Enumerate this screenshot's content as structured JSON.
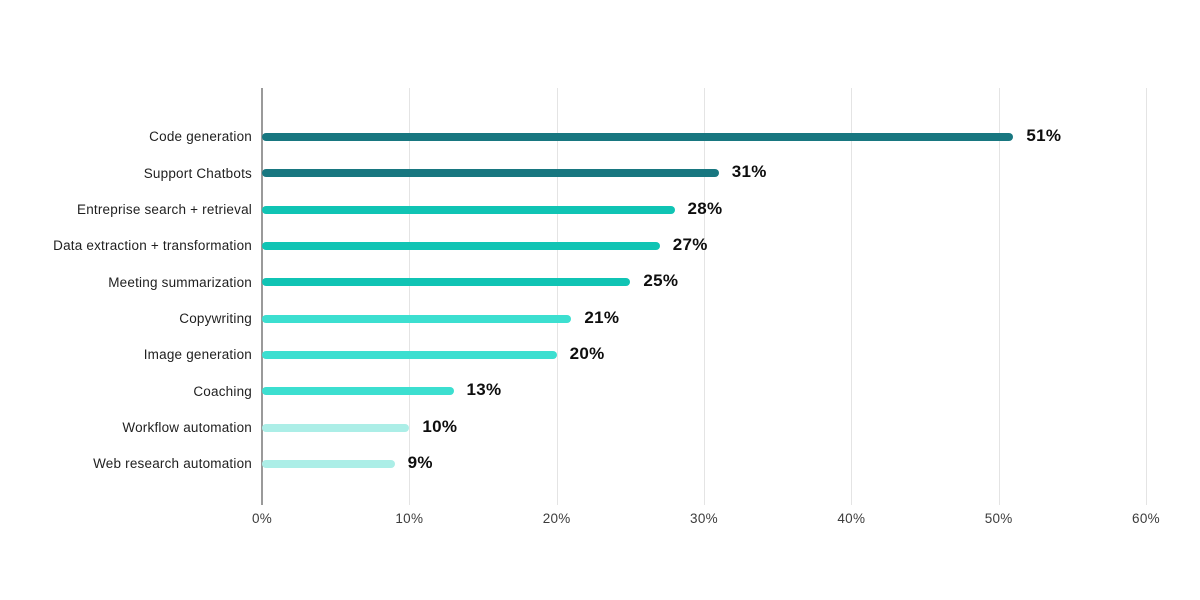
{
  "chart_data": {
    "type": "bar",
    "orientation": "horizontal",
    "categories": [
      "Code generation",
      "Support Chatbots",
      "Entreprise search + retrieval",
      "Data extraction + transformation",
      "Meeting summarization",
      "Copywriting",
      "Image generation",
      "Coaching",
      "Workflow automation",
      "Web research automation"
    ],
    "values": [
      51,
      31,
      28,
      27,
      25,
      21,
      20,
      13,
      10,
      9
    ],
    "value_labels": [
      "51%",
      "31%",
      "28%",
      "27%",
      "25%",
      "21%",
      "20%",
      "13%",
      "10%",
      "9%"
    ],
    "bar_colors": [
      "#187780",
      "#187780",
      "#10c4b4",
      "#10c4b4",
      "#10c4b4",
      "#3cdfd0",
      "#3cdfd0",
      "#3cdfd0",
      "#aceee7",
      "#aceee7"
    ],
    "xlim": [
      0,
      60
    ],
    "x_tick_values": [
      0,
      10,
      20,
      30,
      40,
      50,
      60
    ],
    "x_tick_labels": [
      "0%",
      "10%",
      "20%",
      "30%",
      "40%",
      "50%",
      "60%"
    ],
    "grid": {
      "vertical": true,
      "horizontal": false
    },
    "legend_position": "none",
    "colors": {
      "axis_line": "#9a9a9a",
      "gridline": "#e4e4e4",
      "category_text": "#1f1f1f",
      "value_text": "#0e0e0e",
      "tick_text": "#3c3c3c",
      "background": "#ffffff"
    }
  }
}
